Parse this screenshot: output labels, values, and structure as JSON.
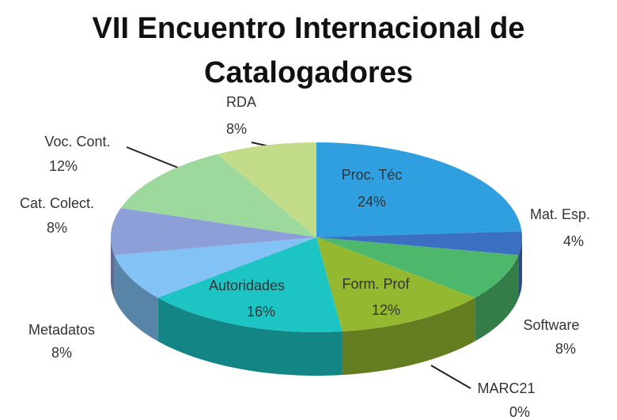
{
  "chart_data": {
    "type": "pie3d",
    "title": "VII Encuentro Internacional de Catalogadores",
    "categories": [
      "Proc. Téc",
      "Mat. Esp.",
      "Software",
      "MARC21",
      "Form. Prof",
      "Autoridades",
      "Metadatos",
      "Cat. Colect.",
      "Voc. Cont.",
      "RDA"
    ],
    "values": [
      24,
      4,
      8,
      0,
      12,
      16,
      8,
      8,
      12,
      8
    ],
    "value_labels": [
      "24%",
      "4%",
      "8%",
      "0%",
      "12%",
      "16%",
      "8%",
      "8%",
      "12%",
      "8%"
    ],
    "colors": [
      "#2f9fe0",
      "#3b6fc2",
      "#4db86b",
      "#c86a3a",
      "#94b830",
      "#1cc4c4",
      "#82c2f5",
      "#8c9fd8",
      "#9dd99d",
      "#c3dc8a"
    ]
  }
}
